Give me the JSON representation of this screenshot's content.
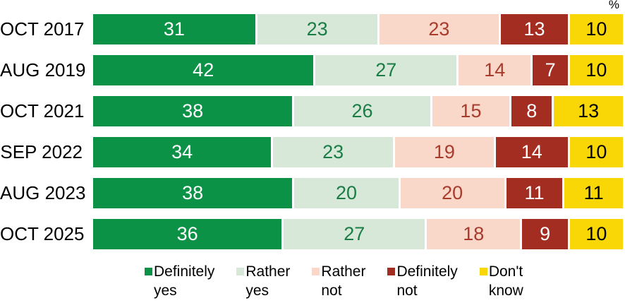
{
  "chart_data": {
    "type": "bar",
    "orientation": "horizontal-stacked",
    "unit_label": "%",
    "xlim": [
      0,
      100
    ],
    "grid": false,
    "categories": [
      "OCT 2017",
      "AUG 2019",
      "OCT 2021",
      "SEP 2022",
      "AUG 2023",
      "OCT 2025"
    ],
    "series": [
      {
        "name": "Definitely yes",
        "color": "#0c9247",
        "label_color": "#ffffff",
        "values": [
          31,
          42,
          38,
          34,
          38,
          36
        ]
      },
      {
        "name": "Rather yes",
        "color": "#d7e8d8",
        "label_color": "#1a7d46",
        "values": [
          23,
          27,
          26,
          23,
          20,
          27
        ]
      },
      {
        "name": "Rather not",
        "color": "#f9d7c9",
        "label_color": "#a93b2c",
        "values": [
          23,
          14,
          15,
          19,
          20,
          18
        ]
      },
      {
        "name": "Definitely not",
        "color": "#a42d21",
        "label_color": "#ffffff",
        "values": [
          13,
          7,
          8,
          14,
          11,
          9
        ]
      },
      {
        "name": "Don't know",
        "color": "#f9d605",
        "label_color": "#000000",
        "values": [
          10,
          10,
          13,
          10,
          11,
          10
        ]
      }
    ],
    "legend": {
      "position": "bottom",
      "items": [
        {
          "line1": "Definitely",
          "line2": "yes"
        },
        {
          "line1": "Rather",
          "line2": "yes"
        },
        {
          "line1": "Rather",
          "line2": "not"
        },
        {
          "line1": "Definitely",
          "line2": "not"
        },
        {
          "line1": "Don't",
          "line2": "know"
        }
      ]
    }
  }
}
